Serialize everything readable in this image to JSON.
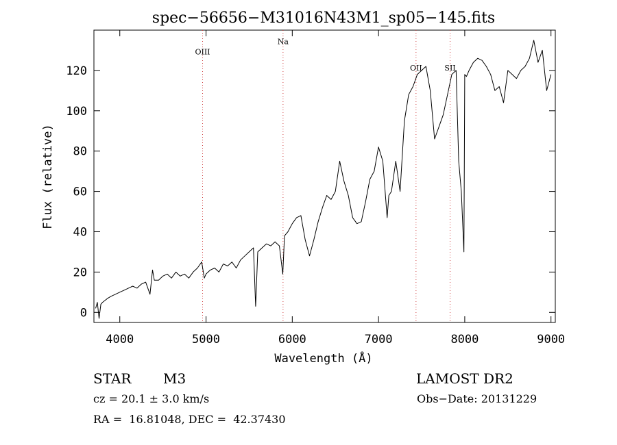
{
  "chart_data": {
    "type": "line",
    "title": "spec−56656−M31016N43M1_sp05−145.fits",
    "xlabel": "Wavelength (Å)",
    "ylabel": "Flux (relative)",
    "xlim": [
      3700,
      9050
    ],
    "ylim": [
      -5,
      140
    ],
    "x_ticks": [
      4000,
      5000,
      6000,
      7000,
      8000,
      9000
    ],
    "y_ticks": [
      0,
      20,
      40,
      60,
      80,
      100,
      120
    ],
    "grid": false,
    "line_color": "#000000",
    "annotation_color": "#d04040",
    "lines": [
      {
        "label": "OIII",
        "x": 4960,
        "label_y": 128
      },
      {
        "label": "Na",
        "x": 5893,
        "label_y": 133
      },
      {
        "label": "OII",
        "x": 7435,
        "label_y": 120
      },
      {
        "label": "SII",
        "x": 7830,
        "label_y": 120
      }
    ],
    "series": [
      {
        "x": [
          3720,
          3740,
          3760,
          3780,
          3800,
          3830,
          3860,
          3900,
          3950,
          4000,
          4050,
          4100,
          4150,
          4200,
          4250,
          4300,
          4350,
          4380,
          4400,
          4450,
          4500,
          4550,
          4600,
          4650,
          4700,
          4750,
          4800,
          4850,
          4900,
          4950,
          4980,
          5000,
          5050,
          5100,
          5150,
          5200,
          5250,
          5300,
          5350,
          5400,
          5450,
          5500,
          5550,
          5575,
          5600,
          5650,
          5700,
          5750,
          5800,
          5850,
          5890,
          5910,
          5950,
          6000,
          6050,
          6100,
          6150,
          6200,
          6250,
          6300,
          6350,
          6400,
          6450,
          6500,
          6550,
          6600,
          6650,
          6700,
          6750,
          6800,
          6850,
          6900,
          6950,
          7000,
          7050,
          7100,
          7120,
          7150,
          7200,
          7250,
          7300,
          7350,
          7400,
          7450,
          7500,
          7550,
          7600,
          7650,
          7700,
          7750,
          7800,
          7850,
          7900,
          7930,
          7960,
          7990,
          8000,
          8020,
          8050,
          8100,
          8150,
          8200,
          8250,
          8300,
          8350,
          8400,
          8450,
          8500,
          8550,
          8600,
          8650,
          8700,
          8750,
          8800,
          8850,
          8900,
          8950,
          9000
        ],
        "y": [
          2,
          5,
          -3,
          4,
          5,
          6,
          7,
          8,
          9,
          10,
          11,
          12,
          13,
          12,
          14,
          15,
          9,
          21,
          16,
          16,
          18,
          19,
          17,
          20,
          18,
          19,
          17,
          20,
          22,
          25,
          17,
          19,
          21,
          22,
          20,
          24,
          23,
          25,
          22,
          26,
          28,
          30,
          32,
          3,
          30,
          32,
          34,
          33,
          35,
          33,
          19,
          38,
          40,
          44,
          47,
          48,
          36,
          28,
          36,
          45,
          52,
          58,
          56,
          60,
          75,
          65,
          58,
          47,
          44,
          45,
          55,
          66,
          70,
          82,
          75,
          47,
          58,
          60,
          75,
          60,
          95,
          108,
          112,
          118,
          120,
          122,
          110,
          86,
          92,
          98,
          108,
          118,
          120,
          75,
          60,
          30,
          118,
          117,
          120,
          124,
          126,
          125,
          122,
          118,
          110,
          112,
          104,
          120,
          118,
          116,
          120,
          122,
          126,
          135,
          124,
          130,
          110,
          118
        ]
      }
    ]
  },
  "info": {
    "object_type": "STAR",
    "subclass": "M3",
    "survey": "LAMOST DR2",
    "cz": "cz = 20.1 ± 3.0 km/s",
    "obs_date": "Obs−Date: 20131229",
    "coords": "RA =  16.81048, DEC =  42.37430"
  }
}
